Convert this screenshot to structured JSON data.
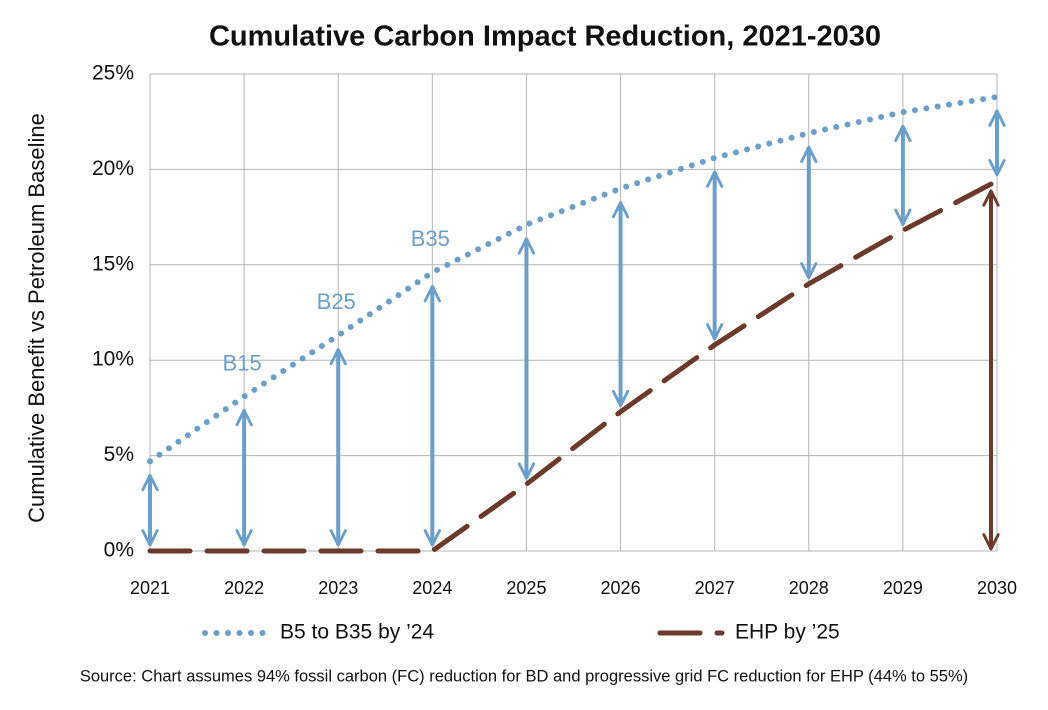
{
  "chart_data": {
    "type": "line",
    "title": "Cumulative Carbon Impact Reduction, 2021-2030",
    "y_label": "Cumulative Benefit vs Petroleum Baseline",
    "categories": [
      "2021",
      "2022",
      "2023",
      "2024",
      "2025",
      "2026",
      "2027",
      "2028",
      "2029",
      "2030"
    ],
    "series": [
      {
        "name": "B5 to B35 by ’24",
        "color": "#6a9fcb",
        "style": "dotted",
        "values": [
          4.7,
          8.1,
          11.3,
          14.6,
          17.1,
          19.0,
          20.6,
          21.9,
          23.0,
          23.8
        ]
      },
      {
        "name": "EHP by ’25",
        "color": "#6b3a2a",
        "style": "dashed",
        "values": [
          0,
          0,
          0,
          0,
          3.5,
          7.3,
          10.8,
          14.0,
          16.8,
          19.4
        ]
      }
    ],
    "annotations": [
      {
        "text": "B15",
        "x": "2022"
      },
      {
        "text": "B25",
        "x": "2023"
      },
      {
        "text": "B35",
        "x": "2024"
      }
    ],
    "ylim": [
      0,
      25
    ],
    "yticks": [
      {
        "value": 0,
        "label": "0%"
      },
      {
        "value": 5,
        "label": "5%"
      },
      {
        "value": 10,
        "label": "10%"
      },
      {
        "value": 15,
        "label": "15%"
      },
      {
        "value": 20,
        "label": "20%"
      },
      {
        "value": 25,
        "label": "25%"
      }
    ],
    "grid": true,
    "difference_arrows": true,
    "legend": "bottom",
    "source": "Source: Chart assumes 94% fossil carbon (FC) reduction for BD and progressive grid FC reduction for EHP (44% to 55%)"
  }
}
